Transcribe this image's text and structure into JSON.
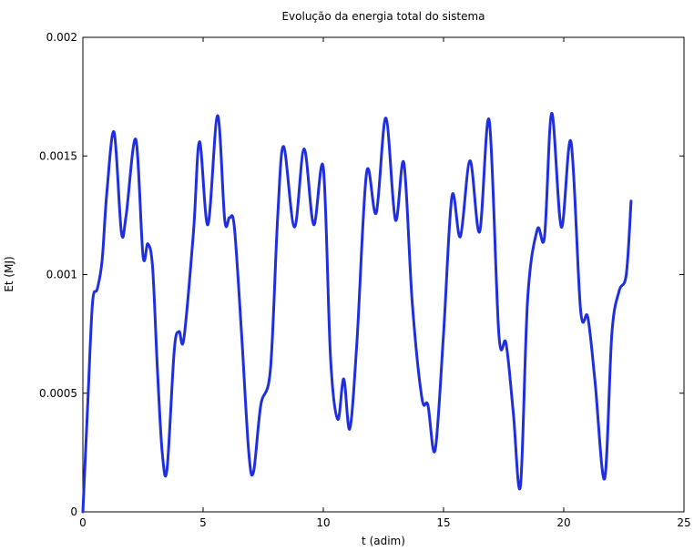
{
  "chart_data": {
    "type": "line",
    "title": "Evolução da energia total do sistema",
    "xlabel": "t (adim)",
    "ylabel": "Et (MJ)",
    "xlim": [
      0,
      25
    ],
    "ylim": [
      0,
      0.002
    ],
    "xticks": [
      0,
      5,
      10,
      15,
      20,
      25
    ],
    "xtick_labels": [
      "0",
      "5",
      "10",
      "15",
      "20",
      "25"
    ],
    "yticks": [
      0,
      0.0005,
      0.001,
      0.0015,
      0.002
    ],
    "ytick_labels": [
      "0",
      "0.0005",
      "0.001",
      "0.0015",
      "0.002"
    ],
    "grid": false,
    "series": [
      {
        "color": "#1f2fe0",
        "x": [
          0,
          0.2,
          0.4,
          0.6,
          0.8,
          1.0,
          1.3,
          1.6,
          1.8,
          2.2,
          2.5,
          2.7,
          2.9,
          3.1,
          3.3,
          3.5,
          3.8,
          4.0,
          4.2,
          4.6,
          4.85,
          5.2,
          5.6,
          5.9,
          6.1,
          6.3,
          6.6,
          6.9,
          7.1,
          7.4,
          7.8,
          8.1,
          8.35,
          8.8,
          9.2,
          9.6,
          10.0,
          10.3,
          10.6,
          10.85,
          11.1,
          11.4,
          11.8,
          12.2,
          12.6,
          13.0,
          13.35,
          13.7,
          14.1,
          14.35,
          14.65,
          15.0,
          15.35,
          15.7,
          16.1,
          16.5,
          16.9,
          17.3,
          17.6,
          17.9,
          18.2,
          18.5,
          18.9,
          19.2,
          19.5,
          19.9,
          20.3,
          20.7,
          21.0,
          21.3,
          21.7,
          22.0,
          22.3,
          22.6,
          22.8
        ],
        "y": [
          0,
          0.00045,
          0.00088,
          0.00094,
          0.00106,
          0.00135,
          0.0016,
          0.00118,
          0.00125,
          0.00157,
          0.00108,
          0.00113,
          0.00103,
          0.0006,
          0.00025,
          0.00018,
          0.00068,
          0.00076,
          0.00073,
          0.00118,
          0.00156,
          0.00121,
          0.00167,
          0.00123,
          0.00124,
          0.0012,
          0.00075,
          0.00025,
          0.00017,
          0.00045,
          0.0006,
          0.00124,
          0.00154,
          0.0012,
          0.00153,
          0.00121,
          0.00145,
          0.00065,
          0.00039,
          0.00056,
          0.00035,
          0.00072,
          0.00143,
          0.00126,
          0.00166,
          0.00123,
          0.00147,
          0.00088,
          0.00048,
          0.00045,
          0.00026,
          0.00075,
          0.00133,
          0.00116,
          0.00148,
          0.00118,
          0.00165,
          0.00075,
          0.00071,
          0.00042,
          0.00011,
          0.0009,
          0.00119,
          0.00116,
          0.00168,
          0.0012,
          0.00156,
          0.00085,
          0.00082,
          0.00055,
          0.00014,
          0.00075,
          0.00093,
          0.001,
          0.00131
        ]
      }
    ]
  }
}
